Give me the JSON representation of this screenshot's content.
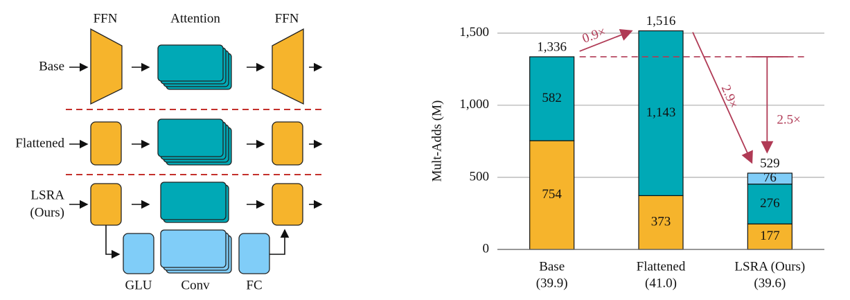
{
  "diagram": {
    "column_labels": [
      "FFN",
      "Attention",
      "FFN"
    ],
    "row_labels": [
      "Base",
      "Flattened",
      "LSRA",
      "(Ours)"
    ],
    "branch_labels": [
      "GLU",
      "Conv",
      "FC"
    ]
  },
  "chart_data": {
    "type": "stacked_bar",
    "categories": [
      "Base",
      "Flattened",
      "LSRA (Ours)"
    ],
    "category_sublabels": [
      "(39.9)",
      "(41.0)",
      "(39.6)"
    ],
    "ylabel": "Mult-Adds (M)",
    "ylim": [
      0,
      1600
    ],
    "yticks": [
      0,
      500,
      {
        "value": 1000,
        "label": "1,000"
      },
      {
        "value": 1500,
        "label": "1,500"
      }
    ],
    "grid": true,
    "series": [
      {
        "color": "#f6b42c",
        "values": [
          754,
          373,
          177
        ]
      },
      {
        "color": "#00a9b6",
        "values": [
          582,
          1143,
          276
        ],
        "value_labels": [
          "582",
          "1,143",
          "276"
        ]
      },
      {
        "color": "#80cdf8",
        "values": [
          null,
          null,
          76
        ]
      }
    ],
    "totals": [
      1336,
      1516,
      529
    ],
    "total_labels": [
      "1,336",
      "1,516",
      "529"
    ],
    "annotations": [
      "0.9×",
      "2.9×",
      "2.5×"
    ],
    "annotation_color": "#b03a55"
  }
}
